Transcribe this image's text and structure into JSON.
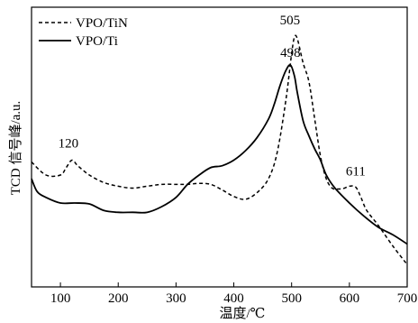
{
  "chart_data": {
    "type": "line",
    "xlabel": "温度/℃",
    "ylabel": "TCD 信号峰/a.u.",
    "xlim": [
      50,
      700
    ],
    "xticks": [
      100,
      200,
      300,
      400,
      500,
      600,
      700
    ],
    "y_ticks_shown": false,
    "grid": false,
    "legend_position": "top-left",
    "series": [
      {
        "name": "VPO/TiN",
        "line_style": "dashed",
        "color": "#000000",
        "x": [
          50,
          75,
          100,
          110,
          120,
          130,
          150,
          175,
          200,
          225,
          250,
          275,
          300,
          320,
          340,
          360,
          380,
          400,
          420,
          440,
          460,
          475,
          490,
          500,
          505,
          510,
          520,
          530,
          540,
          550,
          560,
          570,
          580,
          590,
          600,
          611,
          620,
          630,
          650,
          675,
          700
        ],
        "y": [
          3.2,
          2.5,
          2.5,
          2.9,
          3.3,
          3.0,
          2.5,
          2.1,
          1.9,
          1.8,
          1.9,
          2.0,
          2.0,
          2.0,
          2.05,
          2.0,
          1.7,
          1.35,
          1.2,
          1.55,
          2.3,
          3.7,
          6.5,
          9.0,
          9.9,
          9.8,
          8.5,
          7.5,
          5.5,
          3.5,
          2.3,
          1.8,
          1.75,
          1.78,
          1.9,
          1.85,
          1.3,
          0.6,
          -0.2,
          -1.3,
          -2.3
        ]
      },
      {
        "name": "VPO/Ti",
        "line_style": "solid",
        "color": "#000000",
        "x": [
          50,
          60,
          75,
          100,
          125,
          150,
          175,
          200,
          225,
          250,
          275,
          300,
          320,
          340,
          360,
          380,
          400,
          420,
          440,
          460,
          470,
          480,
          490,
          498,
          505,
          510,
          520,
          530,
          540,
          550,
          560,
          575,
          600,
          625,
          650,
          675,
          700
        ],
        "y": [
          2.3,
          1.6,
          1.3,
          1.0,
          1.0,
          0.95,
          0.6,
          0.5,
          0.5,
          0.5,
          0.8,
          1.3,
          2.0,
          2.5,
          2.9,
          3.0,
          3.3,
          3.8,
          4.5,
          5.5,
          6.3,
          7.3,
          8.1,
          8.4,
          7.8,
          6.9,
          5.4,
          4.6,
          3.9,
          3.3,
          2.5,
          1.8,
          1.0,
          0.3,
          -0.3,
          -0.7,
          -1.2
        ]
      }
    ],
    "annotations": [
      {
        "text": "120",
        "x": 120,
        "y": 3.3
      },
      {
        "text": "505",
        "x": 505,
        "y": 9.9
      },
      {
        "text": "498",
        "x": 498,
        "y": 8.4
      },
      {
        "text": "611",
        "x": 611,
        "y": 1.85
      }
    ]
  }
}
